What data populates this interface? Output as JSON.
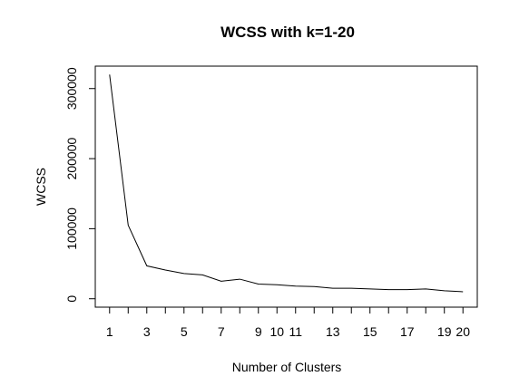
{
  "chart_data": {
    "type": "line",
    "title": "WCSS with k=1-20",
    "xlabel": "Number of Clusters",
    "ylabel": "WCSS",
    "x": [
      1,
      2,
      3,
      4,
      5,
      6,
      7,
      8,
      9,
      10,
      11,
      12,
      13,
      14,
      15,
      16,
      17,
      18,
      19,
      20
    ],
    "series": [
      {
        "values": [
          320000,
          105000,
          47000,
          41000,
          36000,
          34000,
          25000,
          28000,
          21000,
          20000,
          18000,
          17500,
          15000,
          15000,
          14000,
          13000,
          13000,
          14000,
          11500,
          10000
        ]
      }
    ],
    "xticks": [
      1,
      3,
      5,
      7,
      9,
      10,
      11,
      13,
      15,
      17,
      19,
      20
    ],
    "xtick_labels": [
      "1",
      "3",
      "5",
      "7",
      "9",
      "10",
      "11",
      "13",
      "15",
      "17",
      "19",
      "20"
    ],
    "yticks": [
      0,
      100000,
      200000,
      300000
    ],
    "ytick_labels": [
      "0",
      "100000",
      "200000",
      "300000"
    ],
    "xlim": [
      0.23,
      20.77
    ],
    "ylim": [
      -12000,
      332000
    ],
    "grid": false,
    "legend": "none"
  }
}
